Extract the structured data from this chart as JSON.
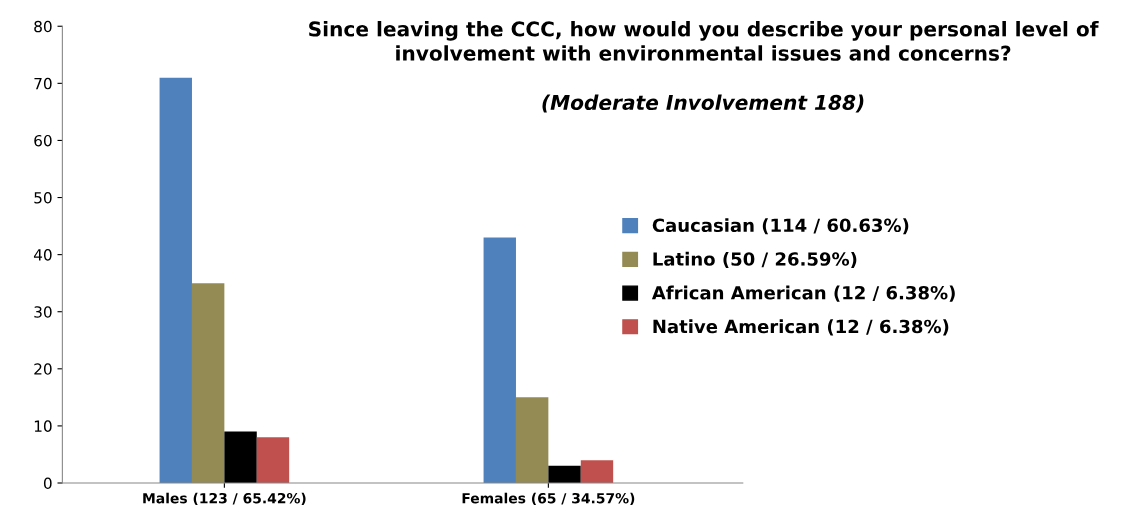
{
  "chart_data": {
    "type": "bar",
    "title": "Since leaving the CCC, how would you describe your personal level of involvement with environmental issues and concerns?",
    "subtitle": "(Moderate Involvement 188)",
    "categories": [
      "Males (123 / 65.42%)",
      "Females (65 / 34.57%)"
    ],
    "series": [
      {
        "name": "Caucasian (114 / 60.63%)",
        "color": "#4f81bd",
        "values": [
          71,
          43
        ]
      },
      {
        "name": "Latino (50 / 26.59%)",
        "color": "#948a54",
        "values": [
          35,
          15
        ]
      },
      {
        "name": "African American (12 / 6.38%)",
        "color": "#000000",
        "values": [
          9,
          3
        ]
      },
      {
        "name": "Native American (12 / 6.38%)",
        "color": "#c0504d",
        "values": [
          8,
          4
        ]
      }
    ],
    "ylim": [
      0,
      80
    ],
    "yticks": [
      0,
      10,
      20,
      30,
      40,
      50,
      60,
      70,
      80
    ],
    "grid": false,
    "legend": "right"
  }
}
